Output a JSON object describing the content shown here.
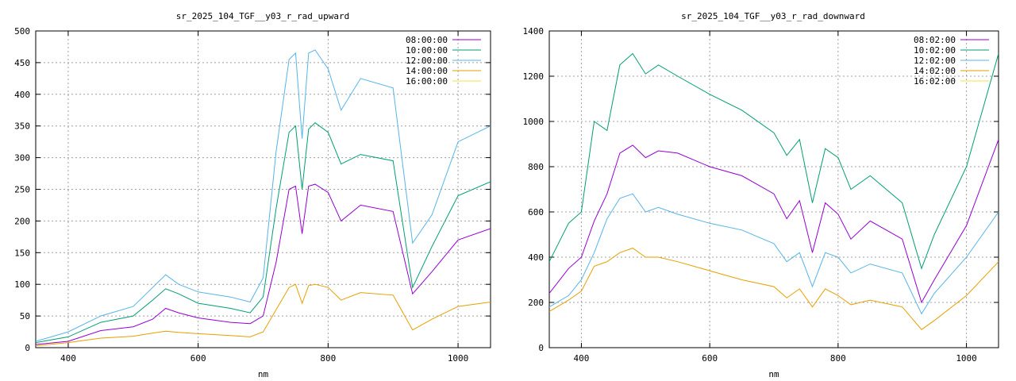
{
  "chart_data": [
    {
      "type": "line",
      "title": "sr_2025_104_TGF__y03_r_rad_upward",
      "xlabel": "nm",
      "ylabel": "",
      "xlim": [
        350,
        1050
      ],
      "ylim": [
        0,
        500
      ],
      "xticks": [
        "400",
        "600",
        "800",
        "1000"
      ],
      "yticks": [
        "0",
        "50",
        "100",
        "150",
        "200",
        "250",
        "300",
        "350",
        "400",
        "450",
        "500"
      ],
      "grid": true,
      "legend_position": "top-right",
      "colors": [
        "#9400d3",
        "#009e73",
        "#56b4e9",
        "#e69f00",
        "#f0e442"
      ],
      "series": [
        {
          "name": "08:00:00",
          "x": [
            350,
            400,
            450,
            500,
            530,
            550,
            570,
            600,
            650,
            680,
            700,
            720,
            740,
            750,
            760,
            770,
            780,
            800,
            820,
            850,
            900,
            930,
            960,
            1000,
            1050
          ],
          "values": [
            5,
            10,
            27,
            33,
            45,
            62,
            55,
            47,
            40,
            38,
            50,
            135,
            250,
            255,
            180,
            255,
            258,
            245,
            200,
            225,
            215,
            85,
            120,
            170,
            188
          ]
        },
        {
          "name": "10:00:00",
          "x": [
            350,
            400,
            450,
            500,
            530,
            550,
            570,
            600,
            650,
            680,
            700,
            720,
            740,
            750,
            760,
            770,
            780,
            800,
            820,
            850,
            900,
            930,
            960,
            1000,
            1050
          ],
          "values": [
            8,
            17,
            40,
            50,
            75,
            93,
            85,
            70,
            62,
            55,
            80,
            220,
            340,
            350,
            250,
            345,
            355,
            340,
            290,
            305,
            295,
            95,
            160,
            240,
            262
          ]
        },
        {
          "name": "12:00:00",
          "x": [
            350,
            400,
            450,
            500,
            530,
            550,
            570,
            600,
            650,
            680,
            700,
            720,
            740,
            750,
            760,
            770,
            780,
            800,
            820,
            850,
            900,
            930,
            960,
            1000,
            1050
          ],
          "values": [
            10,
            25,
            50,
            65,
            95,
            115,
            100,
            88,
            80,
            72,
            110,
            310,
            455,
            465,
            330,
            465,
            470,
            440,
            375,
            425,
            410,
            165,
            210,
            325,
            350
          ]
        },
        {
          "name": "14:00:00",
          "x": [
            350,
            400,
            450,
            500,
            530,
            550,
            570,
            600,
            650,
            680,
            700,
            720,
            740,
            750,
            760,
            770,
            780,
            800,
            820,
            850,
            900,
            930,
            960,
            1000,
            1050
          ],
          "values": [
            3,
            8,
            15,
            18,
            23,
            26,
            24,
            22,
            19,
            17,
            25,
            60,
            95,
            100,
            70,
            98,
            100,
            95,
            75,
            87,
            83,
            28,
            45,
            65,
            72
          ]
        },
        {
          "name": "16:00:00",
          "x": [],
          "values": []
        }
      ]
    },
    {
      "type": "line",
      "title": "sr_2025_104_TGF__y03_r_rad_downward",
      "xlabel": "nm",
      "ylabel": "",
      "xlim": [
        350,
        1050
      ],
      "ylim": [
        0,
        1400
      ],
      "xticks": [
        "400",
        "600",
        "800",
        "1000"
      ],
      "yticks": [
        "0",
        "200",
        "400",
        "600",
        "800",
        "1000",
        "1200",
        "1400"
      ],
      "grid": true,
      "legend_position": "top-right",
      "colors": [
        "#9400d3",
        "#009e73",
        "#56b4e9",
        "#e69f00",
        "#f0e442"
      ],
      "series": [
        {
          "name": "08:02:00",
          "x": [
            350,
            380,
            400,
            420,
            440,
            460,
            480,
            500,
            520,
            550,
            600,
            650,
            700,
            720,
            740,
            760,
            780,
            800,
            820,
            850,
            900,
            930,
            950,
            1000,
            1050
          ],
          "values": [
            240,
            350,
            400,
            560,
            680,
            860,
            895,
            840,
            870,
            860,
            800,
            760,
            680,
            570,
            650,
            420,
            640,
            590,
            480,
            560,
            480,
            200,
            300,
            540,
            920
          ]
        },
        {
          "name": "10:02:00",
          "x": [
            350,
            380,
            400,
            420,
            440,
            460,
            480,
            500,
            520,
            550,
            600,
            650,
            700,
            720,
            740,
            760,
            780,
            800,
            820,
            850,
            900,
            930,
            950,
            1000,
            1050
          ],
          "values": [
            380,
            550,
            600,
            1000,
            960,
            1250,
            1300,
            1210,
            1250,
            1200,
            1120,
            1050,
            950,
            850,
            920,
            640,
            880,
            840,
            700,
            760,
            640,
            350,
            500,
            800,
            1300
          ]
        },
        {
          "name": "12:02:00",
          "x": [
            350,
            380,
            400,
            420,
            440,
            460,
            480,
            500,
            520,
            550,
            600,
            650,
            700,
            720,
            740,
            760,
            780,
            800,
            820,
            850,
            900,
            930,
            950,
            1000,
            1050
          ],
          "values": [
            180,
            230,
            300,
            420,
            570,
            660,
            680,
            600,
            620,
            590,
            550,
            520,
            460,
            380,
            420,
            270,
            420,
            400,
            330,
            370,
            330,
            150,
            240,
            400,
            600
          ]
        },
        {
          "name": "14:02:00",
          "x": [
            350,
            380,
            400,
            420,
            440,
            460,
            480,
            500,
            520,
            550,
            600,
            650,
            700,
            720,
            740,
            760,
            780,
            800,
            820,
            850,
            900,
            930,
            950,
            1000,
            1050
          ],
          "values": [
            160,
            210,
            250,
            360,
            380,
            420,
            440,
            400,
            400,
            380,
            340,
            300,
            270,
            220,
            260,
            180,
            260,
            230,
            190,
            210,
            180,
            80,
            120,
            230,
            380
          ]
        },
        {
          "name": "16:02:00",
          "x": [],
          "values": []
        }
      ]
    }
  ]
}
